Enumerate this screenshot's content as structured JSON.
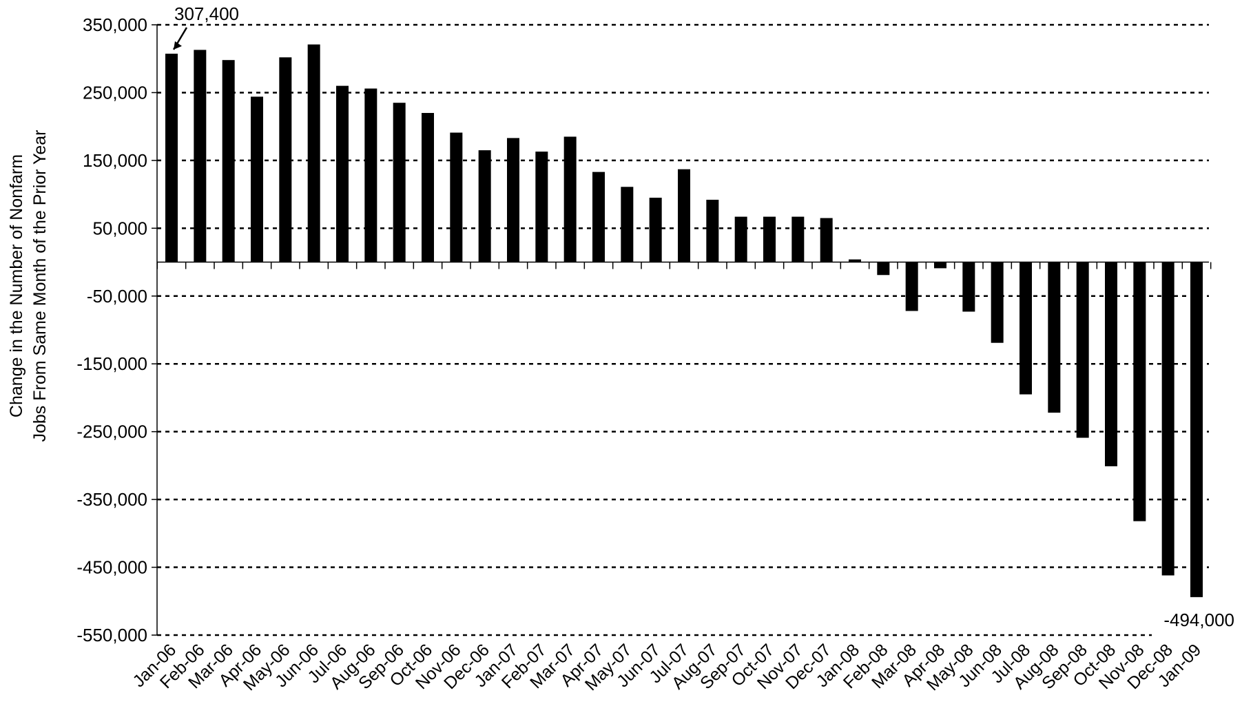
{
  "chart_data": {
    "type": "bar",
    "title": "",
    "ylabel_lines": [
      "Change in the Number of Nonfarm",
      "Jobs From Same Month of the Prior Year"
    ],
    "xlabel": "",
    "ylim": [
      -550000,
      350000
    ],
    "yticks": [
      350000,
      250000,
      150000,
      50000,
      -50000,
      -150000,
      -250000,
      -350000,
      -450000,
      -550000
    ],
    "ytick_labels": [
      "350,000",
      "250,000",
      "150,000",
      "50,000",
      "-50,000",
      "-150,000",
      "-250,000",
      "-350,000",
      "-450,000",
      "-550,000"
    ],
    "grid": "horizontal dashed",
    "categories": [
      "Jan-06",
      "Feb-06",
      "Mar-06",
      "Apr-06",
      "May-06",
      "Jun-06",
      "Jul-06",
      "Aug-06",
      "Sep-06",
      "Oct-06",
      "Nov-06",
      "Dec-06",
      "Jan-07",
      "Feb-07",
      "Mar-07",
      "Apr-07",
      "May-07",
      "Jun-07",
      "Jul-07",
      "Aug-07",
      "Sep-07",
      "Oct-07",
      "Nov-07",
      "Dec-07",
      "Jan-08",
      "Feb-08",
      "Mar-08",
      "Apr-08",
      "May-08",
      "Jun-08",
      "Jul-08",
      "Aug-08",
      "Sep-08",
      "Oct-08",
      "Nov-08",
      "Dec-08",
      "Jan-09"
    ],
    "values": [
      307400,
      313000,
      298000,
      244000,
      302000,
      321000,
      260000,
      256000,
      235000,
      220000,
      191000,
      165000,
      183000,
      163000,
      185000,
      133000,
      111000,
      95000,
      137000,
      92000,
      67000,
      67000,
      67000,
      65000,
      4000,
      -19000,
      -72000,
      -9000,
      -73000,
      -119000,
      -195000,
      -222000,
      -259000,
      -301000,
      -382000,
      -462000,
      -494000
    ],
    "annotations": [
      {
        "label": "307,400",
        "category": "Jan-06",
        "value": 307400
      },
      {
        "label": "-494,000",
        "category": "Jan-09",
        "value": -494000
      }
    ]
  }
}
